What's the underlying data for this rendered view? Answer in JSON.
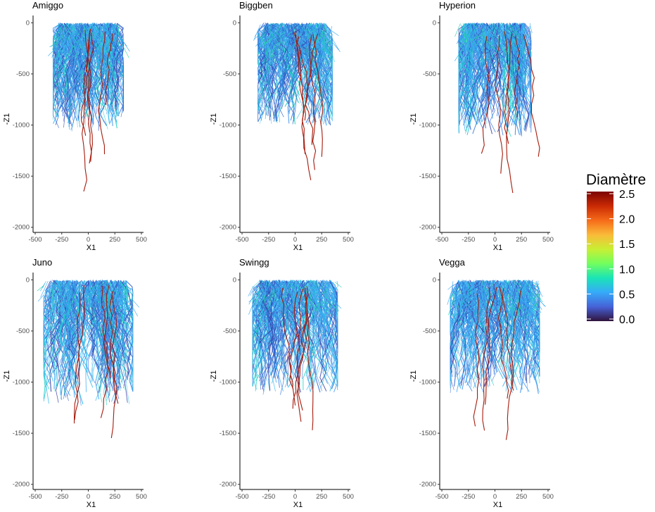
{
  "chart_data": {
    "type": "scatter",
    "description_kind": "root-system architecture plots (faceted)",
    "facets": [
      "Amiggo",
      "Biggben",
      "Hyperion",
      "Juno",
      "Swingg",
      "Vegga"
    ],
    "xlabel": "X1",
    "ylabel": "-Z1",
    "xlim": [
      -520,
      520
    ],
    "ylim": [
      -2050,
      30
    ],
    "x_ticks": [
      -500,
      -250,
      0,
      250,
      500
    ],
    "x_tick_labels": [
      "-500",
      "-250",
      "0",
      "250",
      "500"
    ],
    "y_ticks": [
      0,
      -500,
      -1000,
      -1500,
      -2000
    ],
    "y_tick_labels": [
      "0",
      "-500",
      "-1000",
      "-1500",
      "-2000"
    ],
    "grid": false,
    "legend": {
      "title": "Diamètre",
      "placement": "right",
      "range": [
        0,
        2.5
      ],
      "ticks": [
        "2.5",
        "2.0",
        "1.5",
        "1.0",
        "0.5",
        "0.0"
      ],
      "colors": [
        "#30123b",
        "#4662d7",
        "#36aaf9",
        "#1ae4b6",
        "#72fe5e",
        "#c8ef34",
        "#faba39",
        "#f66b19",
        "#ca2a04",
        "#7a0403"
      ]
    },
    "panels": [
      {
        "name": "Amiggo",
        "half_width": 330,
        "depth_main": 950,
        "tap_depths": [
          1680,
          1400,
          1300,
          800,
          1100,
          1400
        ]
      },
      {
        "name": "Biggben",
        "half_width": 350,
        "depth_main": 900,
        "tap_depths": [
          1560,
          1300,
          1400,
          950,
          1250,
          1200
        ]
      },
      {
        "name": "Hyperion",
        "half_width": 340,
        "depth_main": 1000,
        "tap_depths": [
          1660,
          1450,
          1250,
          1200,
          1300,
          900
        ]
      },
      {
        "name": "Juno",
        "half_width": 420,
        "depth_main": 1100,
        "tap_depths": [
          1500,
          1450,
          1400,
          1000,
          1200,
          1350
        ]
      },
      {
        "name": "Swingg",
        "half_width": 400,
        "depth_main": 1000,
        "tap_depths": [
          1430,
          1400,
          1300,
          1050,
          1250,
          1300
        ]
      },
      {
        "name": "Vegga",
        "half_width": 420,
        "depth_main": 1000,
        "tap_depths": [
          1560,
          1500,
          1400,
          1250,
          1200,
          1100
        ]
      }
    ]
  }
}
